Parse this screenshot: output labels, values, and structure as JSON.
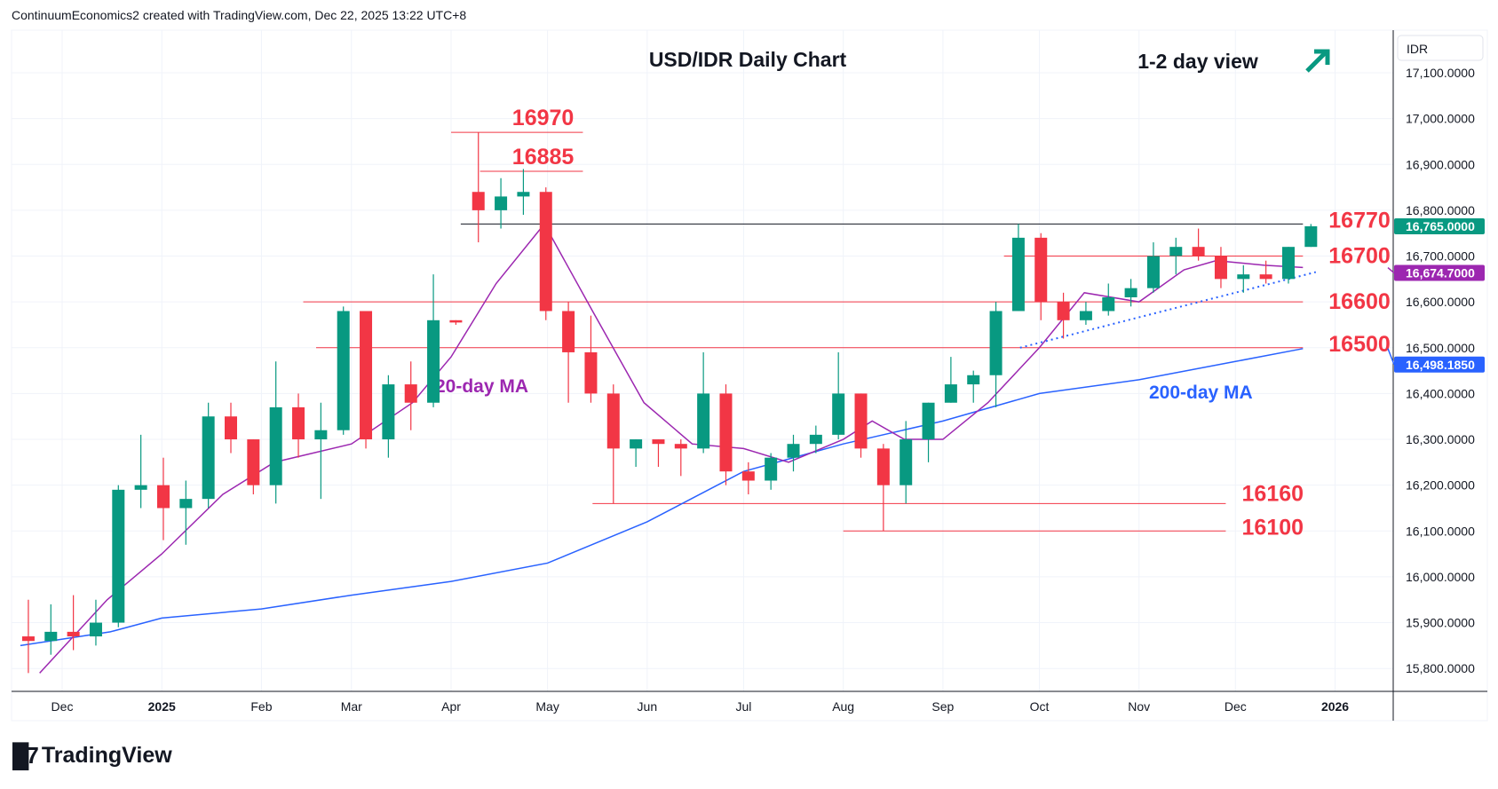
{
  "header": {
    "attribution": "ContinuumEconomics2 created with TradingView.com, Dec 22, 2025 13:22 UTC+8"
  },
  "footer": {
    "brand": "TradingView"
  },
  "colors": {
    "up": "#089981",
    "down": "#f23645",
    "ma20": "#9c27b0",
    "ma200": "#2962ff",
    "level": "#f23645",
    "trend": "#2962ff"
  },
  "chart_data": {
    "type": "candlestick",
    "title": "USD/IDR Daily Chart",
    "annotation": "1-2 day view",
    "annotation_icon": "arrow-up-right-icon",
    "currency": "IDR",
    "ylim": [
      15750,
      17150
    ],
    "y_ticks": [
      "17,100.0000",
      "17,000.0000",
      "16,900.0000",
      "16,800.0000",
      "16,700.0000",
      "16,600.0000",
      "16,500.0000",
      "16,400.0000",
      "16,300.0000",
      "16,200.0000",
      "16,100.0000",
      "16,000.0000",
      "15,900.0000",
      "15,800.0000"
    ],
    "x_ticks": [
      {
        "label": "Dec",
        "date": "2024-12-01"
      },
      {
        "label": "2025",
        "date": "2025-01-01",
        "bold": true
      },
      {
        "label": "Feb",
        "date": "2025-02-01"
      },
      {
        "label": "Mar",
        "date": "2025-03-01"
      },
      {
        "label": "Apr",
        "date": "2025-04-01"
      },
      {
        "label": "May",
        "date": "2025-05-01"
      },
      {
        "label": "Jun",
        "date": "2025-06-01"
      },
      {
        "label": "Jul",
        "date": "2025-07-01"
      },
      {
        "label": "Aug",
        "date": "2025-08-01"
      },
      {
        "label": "Sep",
        "date": "2025-09-01"
      },
      {
        "label": "Oct",
        "date": "2025-10-01"
      },
      {
        "label": "Nov",
        "date": "2025-11-01"
      },
      {
        "label": "Dec",
        "date": "2025-12-01"
      },
      {
        "label": "2026",
        "date": "2026-01-01",
        "bold": true
      }
    ],
    "price_tags": [
      {
        "label": "16,765.0000",
        "value": 16765,
        "color": "#089981"
      },
      {
        "label": "16,674.7000",
        "value": 16674.7,
        "color": "#9c27b0"
      },
      {
        "label": "16,498.1850",
        "value": 16498.185,
        "color": "#2962ff"
      }
    ],
    "candles_weekly": [
      [
        "2024-11-18",
        15870,
        15950,
        15790,
        15860
      ],
      [
        "2024-11-25",
        15860,
        15940,
        15830,
        15880
      ],
      [
        "2024-12-02",
        15880,
        15960,
        15840,
        15870
      ],
      [
        "2024-12-09",
        15870,
        15950,
        15850,
        15900
      ],
      [
        "2024-12-16",
        15900,
        16200,
        15890,
        16190
      ],
      [
        "2024-12-23",
        16190,
        16310,
        16150,
        16200
      ],
      [
        "2024-12-30",
        16200,
        16260,
        16080,
        16150
      ],
      [
        "2025-01-06",
        16150,
        16210,
        16070,
        16170
      ],
      [
        "2025-01-13",
        16170,
        16380,
        16150,
        16350
      ],
      [
        "2025-01-20",
        16350,
        16380,
        16270,
        16300
      ],
      [
        "2025-01-27",
        16300,
        16300,
        16180,
        16200
      ],
      [
        "2025-02-03",
        16200,
        16470,
        16160,
        16370
      ],
      [
        "2025-02-10",
        16370,
        16400,
        16260,
        16300
      ],
      [
        "2025-02-17",
        16300,
        16380,
        16170,
        16320
      ],
      [
        "2025-02-24",
        16320,
        16590,
        16310,
        16580
      ],
      [
        "2025-03-03",
        16580,
        16580,
        16280,
        16300
      ],
      [
        "2025-03-10",
        16300,
        16440,
        16260,
        16420
      ],
      [
        "2025-03-17",
        16420,
        16470,
        16320,
        16380
      ],
      [
        "2025-03-24",
        16380,
        16660,
        16370,
        16560
      ],
      [
        "2025-03-31",
        16560,
        16560,
        16550,
        16555
      ],
      [
        "2025-04-07",
        16840,
        16970,
        16730,
        16800
      ],
      [
        "2025-04-14",
        16800,
        16870,
        16760,
        16830
      ],
      [
        "2025-04-21",
        16830,
        16890,
        16790,
        16840
      ],
      [
        "2025-04-28",
        16840,
        16850,
        16560,
        16580
      ],
      [
        "2025-05-05",
        16580,
        16600,
        16380,
        16490
      ],
      [
        "2025-05-12",
        16490,
        16570,
        16380,
        16400
      ],
      [
        "2025-05-19",
        16400,
        16420,
        16160,
        16280
      ],
      [
        "2025-05-26",
        16280,
        16300,
        16240,
        16300
      ],
      [
        "2025-06-02",
        16300,
        16300,
        16240,
        16290
      ],
      [
        "2025-06-09",
        16290,
        16300,
        16220,
        16280
      ],
      [
        "2025-06-16",
        16280,
        16490,
        16270,
        16400
      ],
      [
        "2025-06-23",
        16400,
        16420,
        16200,
        16230
      ],
      [
        "2025-06-30",
        16230,
        16250,
        16180,
        16210
      ],
      [
        "2025-07-07",
        16210,
        16270,
        16190,
        16260
      ],
      [
        "2025-07-14",
        16260,
        16310,
        16230,
        16290
      ],
      [
        "2025-07-21",
        16290,
        16330,
        16270,
        16310
      ],
      [
        "2025-07-28",
        16310,
        16490,
        16300,
        16400
      ],
      [
        "2025-08-04",
        16400,
        16400,
        16260,
        16280
      ],
      [
        "2025-08-11",
        16280,
        16290,
        16100,
        16200
      ],
      [
        "2025-08-18",
        16200,
        16340,
        16160,
        16300
      ],
      [
        "2025-08-25",
        16300,
        16380,
        16250,
        16380
      ],
      [
        "2025-09-01",
        16380,
        16480,
        16380,
        16420
      ],
      [
        "2025-09-08",
        16420,
        16450,
        16380,
        16440
      ],
      [
        "2025-09-15",
        16440,
        16600,
        16370,
        16580
      ],
      [
        "2025-09-22",
        16580,
        16770,
        16580,
        16740
      ],
      [
        "2025-09-29",
        16740,
        16750,
        16560,
        16600
      ],
      [
        "2025-10-06",
        16600,
        16620,
        16520,
        16560
      ],
      [
        "2025-10-13",
        16560,
        16600,
        16550,
        16580
      ],
      [
        "2025-10-20",
        16580,
        16640,
        16570,
        16610
      ],
      [
        "2025-10-27",
        16610,
        16650,
        16590,
        16630
      ],
      [
        "2025-11-03",
        16630,
        16730,
        16620,
        16700
      ],
      [
        "2025-11-10",
        16700,
        16740,
        16660,
        16720
      ],
      [
        "2025-11-17",
        16720,
        16760,
        16690,
        16700
      ],
      [
        "2025-11-24",
        16700,
        16720,
        16630,
        16650
      ],
      [
        "2025-12-01",
        16650,
        16680,
        16620,
        16660
      ],
      [
        "2025-12-08",
        16660,
        16690,
        16640,
        16650
      ],
      [
        "2025-12-15",
        16650,
        16720,
        16640,
        16720
      ],
      [
        "2025-12-22",
        16720,
        16770,
        16720,
        16765
      ]
    ],
    "ma20": {
      "label": "20-day MA",
      "points": [
        [
          "2024-11-24",
          15790
        ],
        [
          "2024-12-15",
          15950
        ],
        [
          "2025-01-01",
          16050
        ],
        [
          "2025-01-20",
          16180
        ],
        [
          "2025-02-05",
          16250
        ],
        [
          "2025-03-01",
          16290
        ],
        [
          "2025-03-20",
          16380
        ],
        [
          "2025-04-01",
          16480
        ],
        [
          "2025-04-15",
          16640
        ],
        [
          "2025-04-30",
          16770
        ],
        [
          "2025-05-15",
          16580
        ],
        [
          "2025-05-31",
          16380
        ],
        [
          "2025-06-15",
          16290
        ],
        [
          "2025-07-01",
          16280
        ],
        [
          "2025-07-15",
          16250
        ],
        [
          "2025-08-01",
          16300
        ],
        [
          "2025-08-10",
          16340
        ],
        [
          "2025-08-20",
          16300
        ],
        [
          "2025-09-01",
          16300
        ],
        [
          "2025-09-15",
          16380
        ],
        [
          "2025-10-01",
          16500
        ],
        [
          "2025-10-15",
          16620
        ],
        [
          "2025-11-01",
          16600
        ],
        [
          "2025-11-15",
          16670
        ],
        [
          "2025-11-25",
          16690
        ],
        [
          "2025-12-10",
          16680
        ],
        [
          "2025-12-22",
          16675
        ]
      ]
    },
    "ma200": {
      "label": "200-day MA",
      "points": [
        [
          "2024-11-18",
          15850
        ],
        [
          "2024-12-16",
          15880
        ],
        [
          "2025-01-01",
          15910
        ],
        [
          "2025-02-01",
          15930
        ],
        [
          "2025-03-01",
          15960
        ],
        [
          "2025-04-01",
          15990
        ],
        [
          "2025-05-01",
          16030
        ],
        [
          "2025-06-01",
          16120
        ],
        [
          "2025-07-01",
          16230
        ],
        [
          "2025-08-01",
          16290
        ],
        [
          "2025-09-01",
          16340
        ],
        [
          "2025-10-01",
          16400
        ],
        [
          "2025-11-01",
          16430
        ],
        [
          "2025-12-01",
          16470
        ],
        [
          "2025-12-22",
          16498
        ]
      ]
    },
    "levels": [
      {
        "label": "16970",
        "value": 16970,
        "from": "2025-04-01",
        "to": "2025-05-12"
      },
      {
        "label": "16885",
        "value": 16885,
        "from": "2025-04-10",
        "to": "2025-05-12"
      },
      {
        "label": "16770",
        "value": 16770,
        "from": "2025-04-04",
        "to": "2025-12-22"
      },
      {
        "label": "16700",
        "value": 16700,
        "from": "2025-09-20",
        "to": "2025-12-22"
      },
      {
        "label": "16600",
        "value": 16600,
        "from": "2025-02-14",
        "to": "2025-12-22"
      },
      {
        "label": "16500",
        "value": 16500,
        "from": "2025-02-18",
        "to": "2025-12-22"
      },
      {
        "label": "16160",
        "value": 16160,
        "from": "2025-05-15",
        "to": "2025-11-28"
      },
      {
        "label": "16100",
        "value": 16100,
        "from": "2025-08-01",
        "to": "2025-11-28"
      }
    ],
    "trendline": [
      [
        "2025-09-25",
        16500
      ],
      [
        "2025-12-26",
        16665
      ]
    ]
  }
}
